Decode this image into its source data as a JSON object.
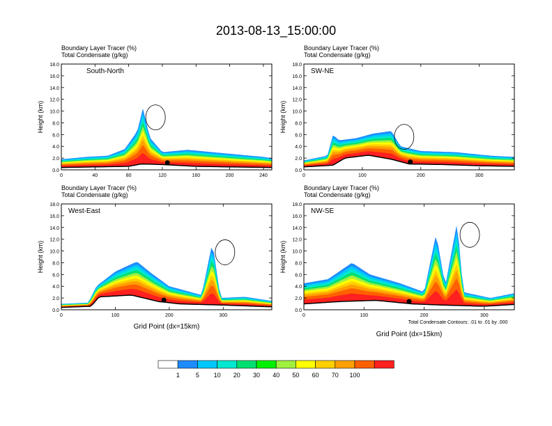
{
  "figure": {
    "title": "2013-08-13_15:00:00",
    "colorbar": {
      "colors": [
        "#ffffff",
        "#1e8cff",
        "#00c8ff",
        "#00e8d0",
        "#00e070",
        "#00f000",
        "#a0f040",
        "#ffff00",
        "#ffd000",
        "#ffa000",
        "#ff6000",
        "#ff2020"
      ],
      "labels": [
        "1",
        "5",
        "10",
        "20",
        "30",
        "40",
        "50",
        "60",
        "70",
        "100"
      ]
    },
    "contour_note": "Total Condensate Contours: .01 to .01 by .000"
  },
  "chart_data": [
    {
      "type": "heatmap",
      "panel": "South-North",
      "header_line1": "Boundary Layer Tracer    (%)",
      "header_line2": "Total Condensate    (g/kg)",
      "ylabel": "Height (km)",
      "xlabel": "",
      "xlim": [
        0,
        250
      ],
      "ylim": [
        0,
        18
      ],
      "xticks": [
        "0",
        "40",
        "80",
        "120",
        "160",
        "200",
        "240"
      ],
      "xtick_values": [
        0,
        40,
        80,
        120,
        160,
        200,
        240
      ],
      "yticks": [
        "0.0",
        "2.0",
        "4.0",
        "6.0",
        "8.0",
        "10.0",
        "12.0",
        "14.0",
        "16.0",
        "18.0"
      ],
      "layer_top_km": [
        [
          0,
          1.8
        ],
        [
          30,
          2.2
        ],
        [
          55,
          2.4
        ],
        [
          75,
          3.5
        ],
        [
          90,
          6.5
        ],
        [
          97,
          10.5
        ],
        [
          105,
          5.5
        ],
        [
          120,
          3.0
        ],
        [
          150,
          3.4
        ],
        [
          180,
          3.0
        ],
        [
          210,
          2.6
        ],
        [
          240,
          2.2
        ],
        [
          250,
          2.0
        ]
      ],
      "terrain_km": [
        [
          0,
          0.4
        ],
        [
          40,
          0.5
        ],
        [
          80,
          0.6
        ],
        [
          95,
          1.0
        ],
        [
          120,
          0.9
        ],
        [
          160,
          0.6
        ],
        [
          200,
          0.5
        ],
        [
          250,
          0.4
        ]
      ],
      "marker_x": 126,
      "box_label": "?"
    },
    {
      "type": "heatmap",
      "panel": "SW-NE",
      "header_line1": "Boundary Layer Tracer    (%)",
      "header_line2": "Total Condensate    (g/kg)",
      "ylabel": "Height (km)",
      "xlabel": "",
      "xlim": [
        0,
        360
      ],
      "ylim": [
        0,
        18
      ],
      "xticks": [
        "0",
        "100",
        "200",
        "300"
      ],
      "xtick_values": [
        0,
        100,
        200,
        300
      ],
      "yticks": [
        "0.0",
        "2.0",
        "4.0",
        "6.0",
        "8.0",
        "10.0",
        "12.0",
        "14.0",
        "16.0",
        "18.0"
      ],
      "layer_top_km": [
        [
          0,
          1.6
        ],
        [
          40,
          2.4
        ],
        [
          50,
          6.0
        ],
        [
          60,
          5.0
        ],
        [
          90,
          5.4
        ],
        [
          120,
          6.2
        ],
        [
          150,
          6.6
        ],
        [
          165,
          4.0
        ],
        [
          200,
          3.2
        ],
        [
          260,
          3.0
        ],
        [
          320,
          2.4
        ],
        [
          360,
          2.2
        ]
      ],
      "terrain_km": [
        [
          0,
          0.5
        ],
        [
          50,
          0.8
        ],
        [
          70,
          2.0
        ],
        [
          110,
          2.5
        ],
        [
          150,
          1.8
        ],
        [
          180,
          1.0
        ],
        [
          240,
          0.9
        ],
        [
          300,
          0.7
        ],
        [
          360,
          0.6
        ]
      ],
      "marker_x": 182,
      "box_label": ""
    },
    {
      "type": "heatmap",
      "panel": "West-East",
      "header_line1": "Boundary Layer Tracer    (%)",
      "header_line2": "Total Condensate    (g/kg)",
      "ylabel": "Height (km)",
      "xlabel": "Grid Point (dx=15km)",
      "xlim": [
        0,
        390
      ],
      "ylim": [
        0,
        18
      ],
      "xticks": [
        "0",
        "100",
        "200",
        "300"
      ],
      "xtick_values": [
        0,
        100,
        200,
        300
      ],
      "yticks": [
        "0.0",
        "2.0",
        "4.0",
        "6.0",
        "8.0",
        "10.0",
        "12.0",
        "14.0",
        "16.0",
        "18.0"
      ],
      "layer_top_km": [
        [
          0,
          1.0
        ],
        [
          50,
          1.2
        ],
        [
          65,
          4.0
        ],
        [
          100,
          6.5
        ],
        [
          140,
          8.2
        ],
        [
          170,
          6.0
        ],
        [
          200,
          4.0
        ],
        [
          260,
          2.5
        ],
        [
          280,
          11.5
        ],
        [
          295,
          2.0
        ],
        [
          340,
          2.2
        ],
        [
          390,
          1.5
        ]
      ],
      "terrain_km": [
        [
          0,
          0.4
        ],
        [
          55,
          0.6
        ],
        [
          70,
          2.2
        ],
        [
          130,
          2.5
        ],
        [
          180,
          1.4
        ],
        [
          220,
          1.0
        ],
        [
          300,
          0.8
        ],
        [
          390,
          0.5
        ]
      ],
      "marker_x": 190,
      "box_label": "?"
    },
    {
      "type": "heatmap",
      "panel": "NW-SE",
      "header_line1": "Boundary Layer Tracer    (%)",
      "header_line2": "Total Condensate    (g/kg)",
      "ylabel": "Height (km)",
      "xlabel": "Grid Point (dx=15km)",
      "xlim": [
        0,
        350
      ],
      "ylim": [
        0,
        18
      ],
      "xticks": [
        "0",
        "100",
        "200",
        "300"
      ],
      "xtick_values": [
        0,
        100,
        200,
        300
      ],
      "yticks": [
        "0.0",
        "2.0",
        "4.0",
        "6.0",
        "8.0",
        "10.0",
        "12.0",
        "14.0",
        "16.0",
        "18.0"
      ],
      "layer_top_km": [
        [
          0,
          4.5
        ],
        [
          40,
          5.2
        ],
        [
          80,
          8.0
        ],
        [
          110,
          6.0
        ],
        [
          160,
          4.5
        ],
        [
          200,
          3.0
        ],
        [
          220,
          13.0
        ],
        [
          235,
          4.0
        ],
        [
          255,
          15.0
        ],
        [
          265,
          3.0
        ],
        [
          310,
          2.0
        ],
        [
          350,
          2.8
        ]
      ],
      "terrain_km": [
        [
          0,
          1.0
        ],
        [
          60,
          1.4
        ],
        [
          120,
          1.6
        ],
        [
          180,
          1.0
        ],
        [
          230,
          0.8
        ],
        [
          300,
          0.6
        ],
        [
          350,
          0.9
        ]
      ],
      "marker_x": 175,
      "box_label": "?"
    }
  ]
}
